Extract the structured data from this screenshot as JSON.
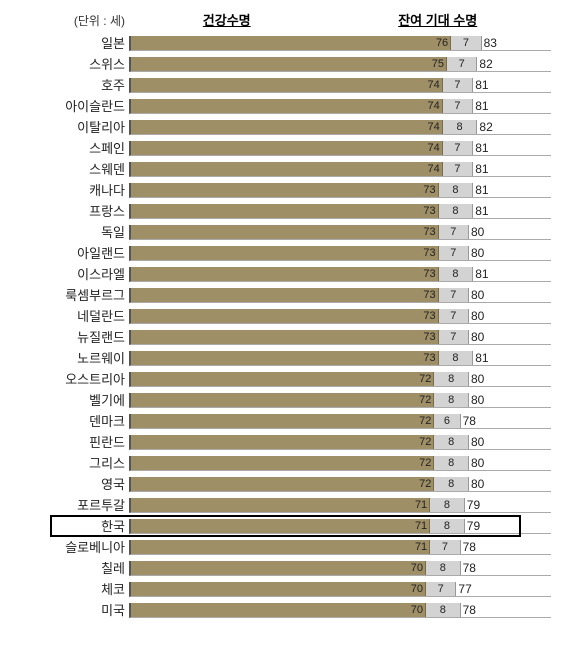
{
  "chart": {
    "unit_label": "(단위 : 세)",
    "legend1": "건강수명",
    "legend2": "잔여 기대 수명",
    "bar1_color": "#9f8f66",
    "bar2_color": "#d3d3d3",
    "bar1_border": "#7a6c48",
    "bar2_border": "#999999",
    "scale_max": 100,
    "bar_area_width": 420,
    "highlight_index": 23,
    "rows": [
      {
        "country": "일본",
        "v1": 76,
        "v2": 7,
        "total": 83
      },
      {
        "country": "스위스",
        "v1": 75,
        "v2": 7,
        "total": 82
      },
      {
        "country": "호주",
        "v1": 74,
        "v2": 7,
        "total": 81
      },
      {
        "country": "아이슬란드",
        "v1": 74,
        "v2": 7,
        "total": 81
      },
      {
        "country": "이탈리아",
        "v1": 74,
        "v2": 8,
        "total": 82
      },
      {
        "country": "스페인",
        "v1": 74,
        "v2": 7,
        "total": 81
      },
      {
        "country": "스웨덴",
        "v1": 74,
        "v2": 7,
        "total": 81
      },
      {
        "country": "캐나다",
        "v1": 73,
        "v2": 8,
        "total": 81
      },
      {
        "country": "프랑스",
        "v1": 73,
        "v2": 8,
        "total": 81
      },
      {
        "country": "독일",
        "v1": 73,
        "v2": 7,
        "total": 80
      },
      {
        "country": "아일랜드",
        "v1": 73,
        "v2": 7,
        "total": 80
      },
      {
        "country": "이스라엘",
        "v1": 73,
        "v2": 8,
        "total": 81
      },
      {
        "country": "룩셈부르그",
        "v1": 73,
        "v2": 7,
        "total": 80
      },
      {
        "country": "네덜란드",
        "v1": 73,
        "v2": 7,
        "total": 80
      },
      {
        "country": "뉴질랜드",
        "v1": 73,
        "v2": 7,
        "total": 80
      },
      {
        "country": "노르웨이",
        "v1": 73,
        "v2": 8,
        "total": 81
      },
      {
        "country": "오스트리아",
        "v1": 72,
        "v2": 8,
        "total": 80
      },
      {
        "country": "벨기에",
        "v1": 72,
        "v2": 8,
        "total": 80
      },
      {
        "country": "덴마크",
        "v1": 72,
        "v2": 6,
        "total": 78
      },
      {
        "country": "핀란드",
        "v1": 72,
        "v2": 8,
        "total": 80
      },
      {
        "country": "그리스",
        "v1": 72,
        "v2": 8,
        "total": 80
      },
      {
        "country": "영국",
        "v1": 72,
        "v2": 8,
        "total": 80
      },
      {
        "country": "포르투갈",
        "v1": 71,
        "v2": 8,
        "total": 79
      },
      {
        "country": "한국",
        "v1": 71,
        "v2": 8,
        "total": 79
      },
      {
        "country": "슬로베니아",
        "v1": 71,
        "v2": 7,
        "total": 78
      },
      {
        "country": "칠레",
        "v1": 70,
        "v2": 8,
        "total": 78
      },
      {
        "country": "체코",
        "v1": 70,
        "v2": 7,
        "total": 77
      },
      {
        "country": "미국",
        "v1": 70,
        "v2": 8,
        "total": 78
      }
    ]
  }
}
